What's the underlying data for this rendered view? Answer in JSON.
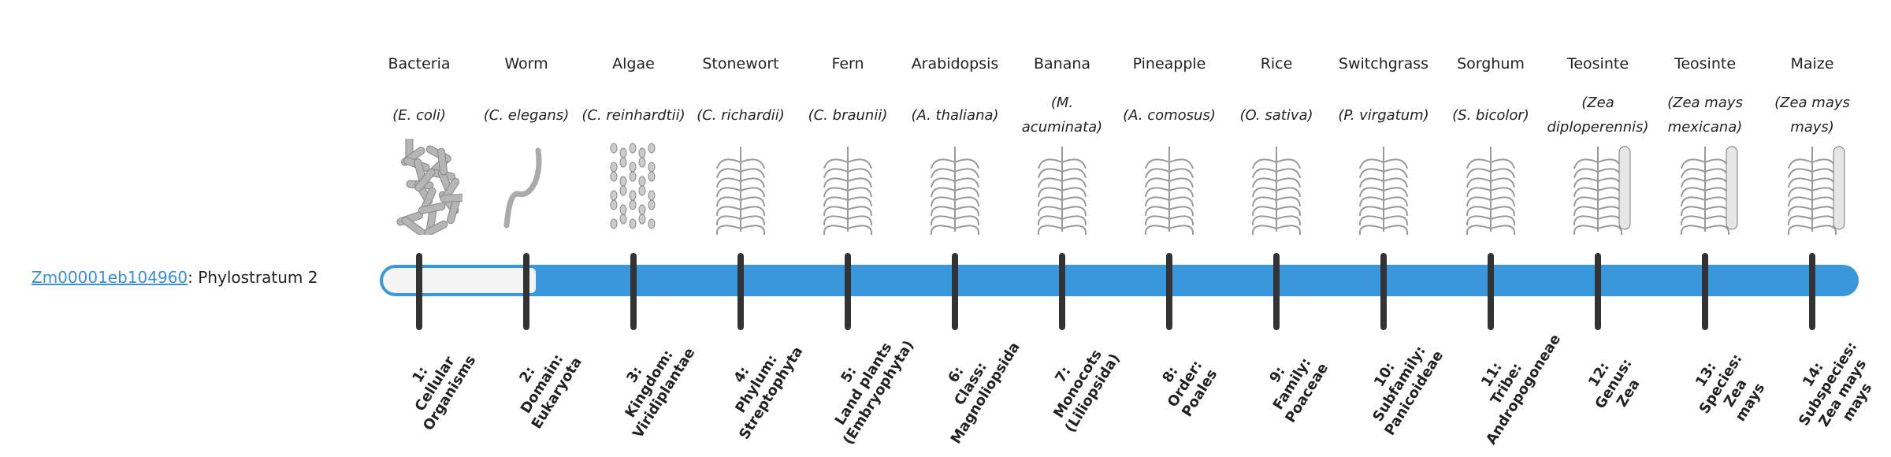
{
  "gene": {
    "id": "Zm00001eb104960",
    "suffix": ": Phylostratum 2"
  },
  "current_stratum": 2,
  "total_strata": 14,
  "bar_color": "#3898db",
  "organisms": [
    {
      "common": "Bacteria",
      "sci": "(E. coli)",
      "icon": "bacteria-icon",
      "stratum": [
        "1:",
        "Cellular",
        "Organisms"
      ]
    },
    {
      "common": "Worm",
      "sci": "(C. elegans)",
      "icon": "worm-icon",
      "stratum": [
        "2:",
        "Domain:",
        "Eukaryota"
      ]
    },
    {
      "common": "Algae",
      "sci": "(C. reinhardtii)",
      "icon": "algae-icon",
      "stratum": [
        "3:",
        "Kingdom:",
        "Viridiplantae"
      ]
    },
    {
      "common": "Stonewort",
      "sci": "(C. richardii)",
      "icon": "stonewort-icon",
      "stratum": [
        "4:",
        "Phylum:",
        "Streptophyta"
      ]
    },
    {
      "common": "Fern",
      "sci": "(C. braunii)",
      "icon": "fern-icon",
      "stratum": [
        "5:",
        "Land plants",
        "(Embryophyta)"
      ]
    },
    {
      "common": "Arabidopsis",
      "sci": "(A. thaliana)",
      "icon": "arabidopsis-icon",
      "stratum": [
        "6:",
        "Class:",
        "Magnoliopsida"
      ]
    },
    {
      "common": "Banana",
      "sci": "(M. acuminata)",
      "icon": "banana-icon",
      "stratum": [
        "7:",
        "Monocots",
        "(Liliopsida)"
      ]
    },
    {
      "common": "Pineapple",
      "sci": "(A. comosus)",
      "icon": "pineapple-icon",
      "stratum": [
        "8:",
        "Order:",
        "Poales"
      ]
    },
    {
      "common": "Rice",
      "sci": "(O. sativa)",
      "icon": "rice-icon",
      "stratum": [
        "9:",
        "Family:",
        "Poaceae"
      ]
    },
    {
      "common": "Switchgrass",
      "sci": "(P. virgatum)",
      "icon": "switchgrass-icon",
      "stratum": [
        "10:",
        "Subfamily:",
        "Panicoideae"
      ]
    },
    {
      "common": "Sorghum",
      "sci": "(S. bicolor)",
      "icon": "sorghum-icon",
      "stratum": [
        "11:",
        "Tribe:",
        "Andropogoneae"
      ]
    },
    {
      "common": "Teosinte",
      "sci": "(Zea diploperennis)",
      "icon": "teosinte-icon",
      "stratum": [
        "12:",
        "Genus:",
        "Zea"
      ]
    },
    {
      "common": "Teosinte",
      "sci": "(Zea mays mexicana)",
      "icon": "teosinte-mexicana-icon",
      "stratum": [
        "13:",
        "Species:",
        "Zea",
        "mays"
      ]
    },
    {
      "common": "Maize",
      "sci": "(Zea mays mays)",
      "icon": "maize-icon",
      "stratum": [
        "14:",
        "Subspecies:",
        "Zea mays",
        "mays"
      ]
    }
  ]
}
